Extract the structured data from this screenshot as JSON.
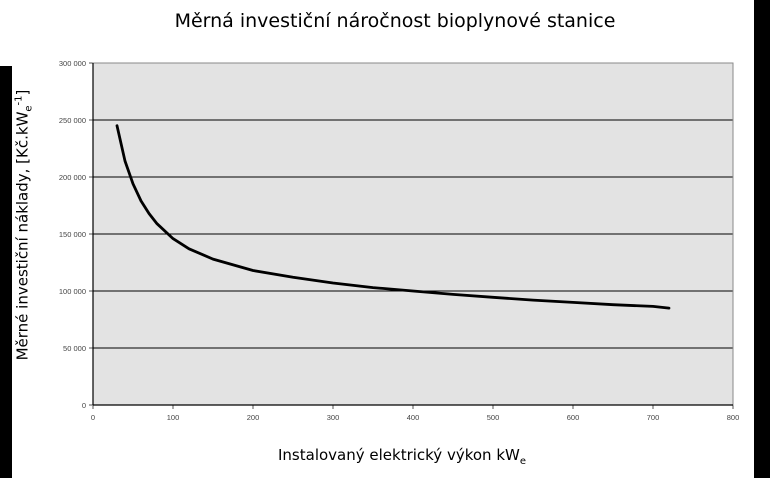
{
  "colors": {
    "plot_background": "#e3e3e3",
    "gridline": "#000000",
    "curve": "#000000",
    "frame": "#000000"
  },
  "chart_data": {
    "type": "line",
    "title": "Měrná investiční náročnost bioplynové stanice",
    "ylabel": {
      "pre": "Měrné investiční náklady, [Kč.kW",
      "sub": "e",
      "sup": "-1",
      "post": "]"
    },
    "xlabel": {
      "pre": "Instalovaný elektrický výkon kW",
      "sub": "e"
    },
    "xlim": [
      0,
      800
    ],
    "ylim": [
      0,
      300000
    ],
    "x_ticks": [
      0,
      100,
      200,
      300,
      400,
      500,
      600,
      700,
      800
    ],
    "y_ticks": [
      0,
      50000,
      100000,
      150000,
      200000,
      250000,
      300000
    ],
    "x_tick_labels": [
      "0",
      "100",
      "200",
      "300",
      "400",
      "500",
      "600",
      "700",
      "800"
    ],
    "y_tick_labels": [
      "0",
      "50 000",
      "100 000",
      "150 000",
      "200 000",
      "250 000",
      "300 000"
    ],
    "grid": "horizontal",
    "legend": "none",
    "series": [
      {
        "x": [
          30,
          40,
          50,
          60,
          70,
          80,
          100,
          120,
          150,
          200,
          250,
          300,
          350,
          400,
          450,
          500,
          550,
          600,
          650,
          700,
          720
        ],
        "values": [
          245000,
          214000,
          194000,
          179000,
          168000,
          159000,
          146000,
          137000,
          128000,
          118000,
          112000,
          107000,
          103000,
          100000,
          97000,
          94500,
          92000,
          90000,
          88000,
          86500,
          85000
        ]
      }
    ]
  }
}
